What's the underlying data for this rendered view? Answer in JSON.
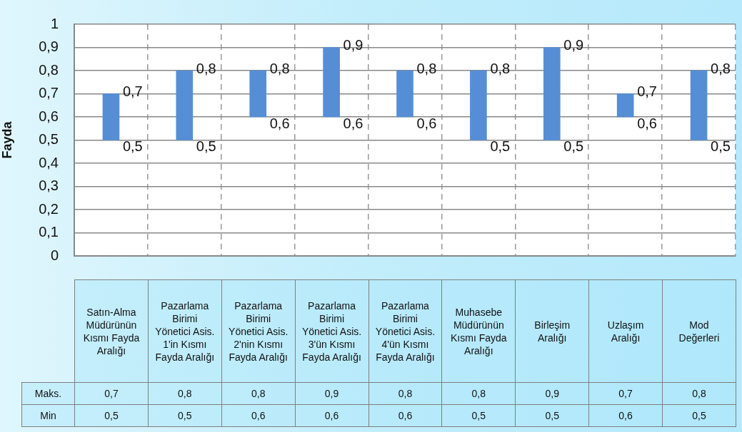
{
  "chart_data": {
    "type": "bar",
    "ylabel": "Fayda",
    "categories": [
      "Satın-Alma Müdürünün Kısmı Fayda Aralığı",
      "Pazarlama Birimi Yönetici Asis. 1'in Kısmı Fayda Aralığı",
      "Pazarlama Birimi Yönetici Asis. 2'nin Kısmı Fayda Aralığı",
      "Pazarlama Birimi Yönetici Asis. 3'ün Kısmı Fayda Aralığı",
      "Pazarlama Birimi Yönetici Asis. 4'ün Kısmı Fayda Aralığı",
      "Muhasebe Müdürünün Kısmı Fayda Aralığı",
      "Birleşim Aralığı",
      "Uzlaşım Aralığı",
      "Mod Değerleri"
    ],
    "base": [
      0.5,
      0.5,
      0.6,
      0.6,
      0.6,
      0.5,
      0.5,
      0.6,
      0.5
    ],
    "values": [
      0.2,
      0.3,
      0.2,
      0.3,
      0.2,
      0.3,
      0.4,
      0.1,
      0.3
    ],
    "color": "#558ed5",
    "ylim": [
      0,
      1
    ],
    "yticks": [
      0,
      {
        "value": 0.1,
        "label": "0,1"
      },
      {
        "value": 0.2,
        "label": "0,2"
      },
      {
        "value": 0.3,
        "label": "0,3"
      },
      {
        "value": 0.4,
        "label": "0,4"
      },
      {
        "value": 0.5,
        "label": "0,5"
      },
      {
        "value": 0.6,
        "label": "0,6"
      },
      {
        "value": 0.7,
        "label": "0,7"
      },
      {
        "value": 0.8,
        "label": "0,8"
      },
      {
        "value": 0.9,
        "label": "0,9"
      },
      1
    ],
    "grid": true,
    "annotations": [
      "Maks.",
      "Min",
      {
        "text": "0,7",
        "x": "Satın-Alma Müdürünün Kısmı Fayda Aralığı",
        "y": 0.7
      },
      {
        "text": "0,8",
        "x": "Pazarlama Birimi Yönetici Asis. 1'in Kısmı Fayda Aralığı",
        "y": 0.8
      },
      {
        "text": "0,8",
        "x": "Pazarlama Birimi Yönetici Asis. 2'nin Kısmı Fayda Aralığı",
        "y": 0.8
      },
      {
        "text": "0,9",
        "x": "Pazarlama Birimi Yönetici Asis. 3'ün Kısmı Fayda Aralığı",
        "y": 0.9
      },
      {
        "text": "0,8",
        "x": "Pazarlama Birimi Yönetici Asis. 4'ün Kısmı Fayda Aralığı",
        "y": 0.8
      },
      {
        "text": "0,8",
        "x": "Muhasebe Müdürünün Kısmı Fayda Aralığı",
        "y": 0.8
      },
      {
        "text": "0,9",
        "x": "Birleşim Aralığı",
        "y": 0.9
      },
      {
        "text": "0,7",
        "x": "Uzlaşım Aralığı",
        "y": 0.7
      },
      {
        "text": "0,8",
        "x": "Mod Değerleri",
        "y": 0.8
      },
      {
        "text": "0,5",
        "x": "Satın-Alma Müdürünün Kısmı Fayda Aralığı",
        "y": 0.5
      },
      {
        "text": "0,5",
        "x": "Pazarlama Birimi Yönetici Asis. 1'in Kısmı Fayda Aralığı",
        "y": 0.5
      },
      {
        "text": "0,6",
        "x": "Pazarlama Birimi Yönetici Asis. 2'nin Kısmı Fayda Aralığı",
        "y": 0.6
      },
      {
        "text": "0,6",
        "x": "Pazarlama Birimi Yönetici Asis. 3'ün Kısmı Fayda Aralığı",
        "y": 0.6
      },
      {
        "text": "0,6",
        "x": "Pazarlama Birimi Yönetici Asis. 4'ün Kısmı Fayda Aralığı",
        "y": 0.6
      },
      {
        "text": "0,5",
        "x": "Muhasebe Müdürünün Kısmı Fayda Aralığı",
        "y": 0.5
      },
      {
        "text": "0,5",
        "x": "Birleşim Aralığı",
        "y": 0.5
      },
      {
        "text": "0,6",
        "x": "Uzlaşım Aralığı",
        "y": 0.6
      },
      {
        "text": "0,5",
        "x": "Mod Değerleri",
        "y": 0.5
      }
    ]
  }
}
